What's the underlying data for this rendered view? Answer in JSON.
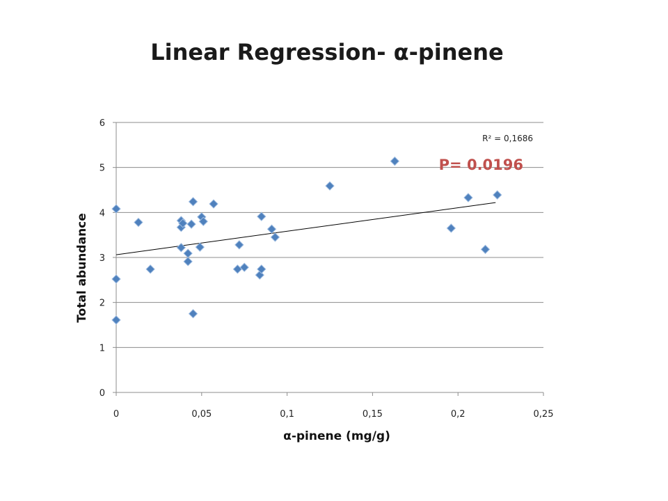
{
  "chart_data": {
    "type": "scatter",
    "title": "Linear Regression- α-pinene",
    "xlabel": "α-pinene (mg/g)",
    "ylabel": "Total abundance",
    "xlim": [
      0,
      0.25
    ],
    "ylim": [
      0,
      6
    ],
    "x_ticks": [
      "0",
      "0,05",
      "0,1",
      "0,15",
      "0,2",
      "0,25"
    ],
    "y_ticks": [
      "0",
      "1",
      "2",
      "3",
      "4",
      "5",
      "6"
    ],
    "grid": "horizontal",
    "marker": "diamond",
    "marker_color": "#4f81bd",
    "points": [
      {
        "x": 0.0,
        "y": 4.08
      },
      {
        "x": 0.0,
        "y": 2.52
      },
      {
        "x": 0.0,
        "y": 1.61
      },
      {
        "x": 0.013,
        "y": 3.78
      },
      {
        "x": 0.02,
        "y": 2.74
      },
      {
        "x": 0.038,
        "y": 3.82
      },
      {
        "x": 0.038,
        "y": 3.67
      },
      {
        "x": 0.039,
        "y": 3.76
      },
      {
        "x": 0.038,
        "y": 3.22
      },
      {
        "x": 0.042,
        "y": 3.09
      },
      {
        "x": 0.042,
        "y": 2.91
      },
      {
        "x": 0.044,
        "y": 3.74
      },
      {
        "x": 0.045,
        "y": 4.24
      },
      {
        "x": 0.045,
        "y": 1.75
      },
      {
        "x": 0.049,
        "y": 3.23
      },
      {
        "x": 0.05,
        "y": 3.9
      },
      {
        "x": 0.051,
        "y": 3.8
      },
      {
        "x": 0.057,
        "y": 4.19
      },
      {
        "x": 0.071,
        "y": 2.74
      },
      {
        "x": 0.072,
        "y": 3.28
      },
      {
        "x": 0.075,
        "y": 2.78
      },
      {
        "x": 0.084,
        "y": 2.61
      },
      {
        "x": 0.085,
        "y": 2.74
      },
      {
        "x": 0.085,
        "y": 3.91
      },
      {
        "x": 0.091,
        "y": 3.63
      },
      {
        "x": 0.093,
        "y": 3.45
      },
      {
        "x": 0.125,
        "y": 4.59
      },
      {
        "x": 0.163,
        "y": 5.14
      },
      {
        "x": 0.196,
        "y": 3.65
      },
      {
        "x": 0.206,
        "y": 4.33
      },
      {
        "x": 0.216,
        "y": 3.18
      },
      {
        "x": 0.223,
        "y": 4.39
      }
    ],
    "trendline": {
      "x": [
        0.0,
        0.222
      ],
      "y": [
        3.06,
        4.22
      ],
      "color": "#000000"
    },
    "annotations": {
      "r_squared": "R² = 0,1686",
      "p_value": "P= 0.0196",
      "p_value_color": "#c0504d"
    }
  }
}
